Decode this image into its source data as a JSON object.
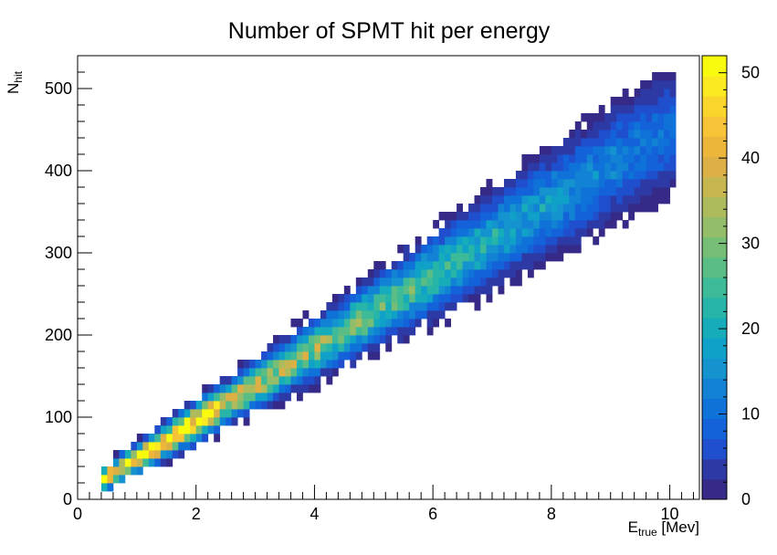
{
  "chart_data": {
    "type": "heatmap",
    "title": "Number of SPMT hit per energy",
    "xlabel": {
      "main": "E",
      "sub": "true",
      "unit": " [Mev]"
    },
    "ylabel": {
      "main": "N",
      "sub": "hit"
    },
    "xlim": [
      0,
      10.5
    ],
    "ylim": [
      0,
      540
    ],
    "x_ticks": [
      0,
      2,
      4,
      6,
      8,
      10
    ],
    "y_ticks": [
      0,
      100,
      200,
      300,
      400,
      500
    ],
    "colorbar": {
      "range": [
        0,
        52
      ],
      "ticks": [
        0,
        10,
        20,
        30,
        40,
        50
      ],
      "palette": [
        "#352a87",
        "#2d3aa6",
        "#1f4fcc",
        "#1462d9",
        "#0f72d8",
        "#1283d4",
        "#1493cf",
        "#10a1c8",
        "#16acba",
        "#27b4a9",
        "#3dba97",
        "#5abd85",
        "#76be76",
        "#93bd69",
        "#aebb5d",
        "#c6b650",
        "#dcb045",
        "#ecb63b",
        "#f6c436",
        "#fad62c",
        "#fbe921",
        "#f9fb0e"
      ]
    },
    "bins": {
      "x_width": 0.1,
      "y_width": 10
    },
    "ridge": {
      "slope": 44.5,
      "intercept": 5
    },
    "grid": false,
    "legend": "colorbar-right"
  }
}
